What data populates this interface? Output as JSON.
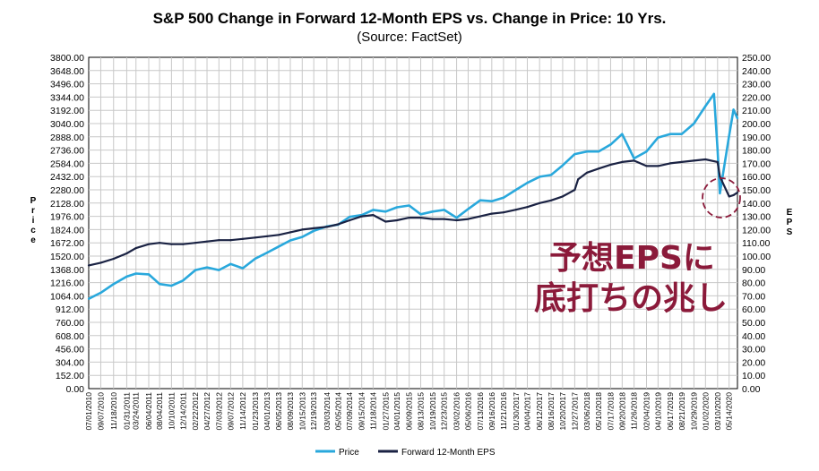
{
  "chart_data": {
    "type": "line",
    "title": "S&P 500 Change in Forward 12-Month EPS vs. Change in Price: 10 Yrs.",
    "subtitle": "(Source: FactSet)",
    "ylabel_left": "Price",
    "ylabel_right": "EPS",
    "ylim_left": [
      0,
      3800
    ],
    "ylim_right": [
      0,
      250
    ],
    "yticks_left": [
      "3800.00",
      "3648.00",
      "3496.00",
      "3344.00",
      "3192.00",
      "3040.00",
      "2888.00",
      "2736.00",
      "2584.00",
      "2432.00",
      "2280.00",
      "2128.00",
      "1976.00",
      "1824.00",
      "1672.00",
      "1520.00",
      "1368.00",
      "1216.00",
      "1064.00",
      "912.00",
      "760.00",
      "608.00",
      "456.00",
      "304.00",
      "152.00",
      "0.00"
    ],
    "yticks_right": [
      "250.00",
      "240.00",
      "230.00",
      "220.00",
      "210.00",
      "200.00",
      "190.00",
      "180.00",
      "170.00",
      "160.00",
      "150.00",
      "140.00",
      "130.00",
      "120.00",
      "110.00",
      "100.00",
      "90.00",
      "80.00",
      "70.00",
      "60.00",
      "50.00",
      "40.00",
      "30.00",
      "20.00",
      "10.00",
      "0.00"
    ],
    "xticks": [
      "07/01/2010",
      "09/07/2010",
      "11/18/2010",
      "01/31/2011",
      "03/24/2011",
      "06/04/2011",
      "08/04/2011",
      "10/10/2011",
      "12/14/2011",
      "02/22/2012",
      "04/27/2012",
      "07/03/2012",
      "09/07/2012",
      "11/14/2012",
      "01/23/2013",
      "04/01/2013",
      "06/05/2013",
      "08/09/2013",
      "10/15/2013",
      "12/19/2013",
      "03/03/2014",
      "05/05/2014",
      "07/09/2014",
      "09/15/2014",
      "11/18/2014",
      "01/27/2015",
      "04/01/2015",
      "06/09/2015",
      "08/13/2015",
      "10/19/2015",
      "12/23/2015",
      "03/02/2016",
      "05/06/2016",
      "07/13/2016",
      "09/16/2016",
      "11/21/2016",
      "01/30/2017",
      "04/04/2017",
      "06/12/2017",
      "08/16/2017",
      "10/20/2017",
      "12/27/2017",
      "03/06/2018",
      "05/10/2018",
      "07/17/2018",
      "09/20/2018",
      "11/26/2018",
      "02/04/2019",
      "04/10/2019",
      "06/17/2019",
      "08/21/2019",
      "10/29/2019",
      "01/02/2020",
      "03/10/2020",
      "05/14/2020"
    ],
    "grid": true,
    "legend_position": "bottom",
    "series": [
      {
        "name": "Price",
        "axis": "left",
        "color": "#29a8dc",
        "x": [
          "07/01/2010",
          "09/07/2010",
          "11/18/2010",
          "01/31/2011",
          "03/24/2011",
          "06/04/2011",
          "08/04/2011",
          "10/10/2011",
          "12/14/2011",
          "02/22/2012",
          "04/27/2012",
          "07/03/2012",
          "09/07/2012",
          "11/14/2012",
          "01/23/2013",
          "04/01/2013",
          "06/05/2013",
          "08/09/2013",
          "10/15/2013",
          "12/19/2013",
          "03/03/2014",
          "05/05/2014",
          "07/09/2014",
          "09/15/2014",
          "11/18/2014",
          "01/27/2015",
          "04/01/2015",
          "06/09/2015",
          "08/13/2015",
          "10/19/2015",
          "12/23/2015",
          "03/02/2016",
          "05/06/2016",
          "07/13/2016",
          "09/16/2016",
          "11/21/2016",
          "01/30/2017",
          "04/04/2017",
          "06/12/2017",
          "08/16/2017",
          "10/20/2017",
          "12/27/2017",
          "03/06/2018",
          "05/10/2018",
          "07/17/2018",
          "09/20/2018",
          "11/26/2018",
          "02/04/2019",
          "04/10/2019",
          "06/17/2019",
          "08/21/2019",
          "10/29/2019",
          "01/02/2020",
          "02/19/2020",
          "03/10/2020",
          "03/23/2020",
          "05/14/2020",
          "06/08/2020",
          "06/30/2020"
        ],
        "values": [
          1030,
          1100,
          1200,
          1285,
          1320,
          1310,
          1200,
          1180,
          1240,
          1360,
          1390,
          1360,
          1430,
          1380,
          1490,
          1560,
          1630,
          1700,
          1740,
          1810,
          1860,
          1880,
          1970,
          1990,
          2050,
          2030,
          2080,
          2100,
          2000,
          2030,
          2050,
          1960,
          2060,
          2160,
          2150,
          2190,
          2280,
          2360,
          2430,
          2450,
          2560,
          2690,
          2720,
          2720,
          2800,
          2920,
          2640,
          2720,
          2880,
          2920,
          2920,
          3040,
          3240,
          3380,
          2740,
          2240,
          2900,
          3200,
          3100
        ]
      },
      {
        "name": "Forward 12-Month EPS",
        "axis": "right",
        "color": "#1a2243",
        "x": [
          "07/01/2010",
          "09/07/2010",
          "11/18/2010",
          "01/31/2011",
          "03/24/2011",
          "06/04/2011",
          "08/04/2011",
          "10/10/2011",
          "12/14/2011",
          "02/22/2012",
          "04/27/2012",
          "07/03/2012",
          "09/07/2012",
          "11/14/2012",
          "01/23/2013",
          "04/01/2013",
          "06/05/2013",
          "08/09/2013",
          "10/15/2013",
          "12/19/2013",
          "03/03/2014",
          "05/05/2014",
          "07/09/2014",
          "09/15/2014",
          "11/18/2014",
          "01/27/2015",
          "04/01/2015",
          "06/09/2015",
          "08/13/2015",
          "10/19/2015",
          "12/23/2015",
          "03/02/2016",
          "05/06/2016",
          "07/13/2016",
          "09/16/2016",
          "11/21/2016",
          "01/30/2017",
          "04/04/2017",
          "06/12/2017",
          "08/16/2017",
          "10/20/2017",
          "12/27/2017",
          "01/15/2018",
          "03/06/2018",
          "05/10/2018",
          "07/17/2018",
          "09/20/2018",
          "11/26/2018",
          "02/04/2019",
          "04/10/2019",
          "06/17/2019",
          "08/21/2019",
          "10/29/2019",
          "01/02/2020",
          "03/10/2020",
          "03/23/2020",
          "05/14/2020",
          "06/08/2020",
          "06/30/2020"
        ],
        "values": [
          93,
          95,
          98,
          102,
          106,
          109,
          110,
          109,
          109,
          110,
          111,
          112,
          112,
          113,
          114,
          115,
          116,
          118,
          120,
          121,
          122,
          124,
          127,
          130,
          131,
          126,
          127,
          129,
          129,
          128,
          128,
          127,
          128,
          130,
          132,
          133,
          135,
          137,
          140,
          142,
          145,
          150,
          158,
          163,
          166,
          169,
          171,
          172,
          168,
          168,
          170,
          171,
          172,
          173,
          171,
          160,
          145,
          146,
          148
        ]
      }
    ],
    "annotations": [
      {
        "text": "予想EPSに",
        "color": "#8b1a3a"
      },
      {
        "text": "底打ちの兆し",
        "color": "#8b1a3a"
      }
    ]
  }
}
